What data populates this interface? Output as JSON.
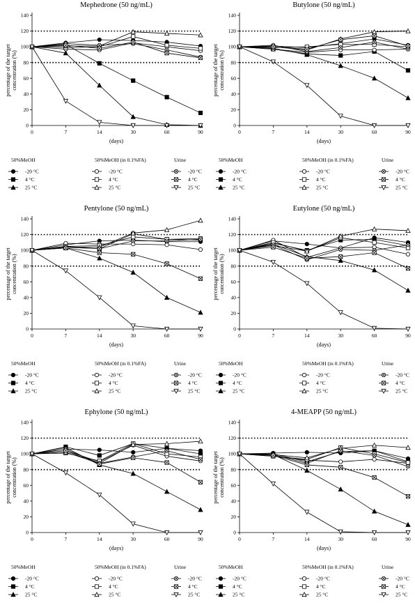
{
  "legend": {
    "groups": [
      "50%MeOH",
      "50%MeOH (in 0.1%FA)",
      "Urine"
    ],
    "temps": [
      "-20 °C",
      "4 °C",
      "25 °C"
    ]
  },
  "chart_data": [
    {
      "type": "line",
      "title": "Mephedrone (50 ng/mL)",
      "xlabel": "(days)",
      "ylabel": "percentage of the target concentration (%)",
      "x": [
        0,
        7,
        14,
        30,
        60,
        90
      ],
      "x_scale": "categorical",
      "ylim": [
        0,
        140
      ],
      "yticks": [
        0,
        20,
        40,
        60,
        80,
        100,
        120,
        140
      ],
      "reference_lines": [
        80,
        120
      ],
      "series": [
        {
          "name": "50%MeOH -20 °C",
          "marker": "circle-filled",
          "values": [
            100,
            105,
            109,
            108,
            106,
            101
          ]
        },
        {
          "name": "50%MeOH 4 °C",
          "marker": "square-filled",
          "values": [
            100,
            103,
            79,
            57,
            36,
            16
          ]
        },
        {
          "name": "50%MeOH 25 °C",
          "marker": "triangle-filled",
          "values": [
            100,
            92,
            51,
            11,
            1,
            0
          ]
        },
        {
          "name": "50%MeOH (in 0.1%FA) -20 °C",
          "marker": "circle-open",
          "values": [
            100,
            97,
            96,
            105,
            100,
            95
          ]
        },
        {
          "name": "50%MeOH (in 0.1%FA) 4 °C",
          "marker": "square-open",
          "values": [
            100,
            99,
            100,
            113,
            102,
            98
          ]
        },
        {
          "name": "50%MeOH (in 0.1%FA) 25 °C",
          "marker": "triangle-up-open",
          "values": [
            100,
            101,
            101,
            119,
            117,
            115
          ]
        },
        {
          "name": "Urine -20 °C",
          "marker": "circle-x",
          "values": [
            100,
            104,
            102,
            104,
            96,
            87
          ]
        },
        {
          "name": "Urine 4 °C",
          "marker": "square-x",
          "values": [
            100,
            102,
            98,
            106,
            92,
            86
          ]
        },
        {
          "name": "Urine 25 °C",
          "marker": "triangle-down-open",
          "values": [
            100,
            31,
            4,
            0,
            0,
            0
          ]
        }
      ]
    },
    {
      "type": "line",
      "title": "Butylone (50 ng/mL)",
      "xlabel": "(days)",
      "ylabel": "percentage of the target concentration (%)",
      "x": [
        0,
        7,
        14,
        30,
        60,
        90
      ],
      "x_scale": "categorical",
      "ylim": [
        0,
        140
      ],
      "yticks": [
        0,
        20,
        40,
        60,
        80,
        100,
        120,
        140
      ],
      "reference_lines": [
        80,
        120
      ],
      "series": [
        {
          "name": "50%MeOH -20 °C",
          "marker": "circle-filled",
          "values": [
            100,
            101,
            99,
            104,
            110,
            102
          ]
        },
        {
          "name": "50%MeOH 4 °C",
          "marker": "square-filled",
          "values": [
            100,
            97,
            91,
            89,
            94,
            70
          ]
        },
        {
          "name": "50%MeOH 25 °C",
          "marker": "triangle-filled",
          "values": [
            100,
            98,
            90,
            76,
            60,
            35
          ]
        },
        {
          "name": "50%MeOH (in 0.1%FA) -20 °C",
          "marker": "circle-open",
          "values": [
            100,
            97,
            93,
            96,
            96,
            97
          ]
        },
        {
          "name": "50%MeOH (in 0.1%FA) 4 °C",
          "marker": "square-open",
          "values": [
            100,
            99,
            100,
            103,
            103,
            100
          ]
        },
        {
          "name": "50%MeOH (in 0.1%FA) 25 °C",
          "marker": "triangle-up-open",
          "values": [
            100,
            100,
            96,
            110,
            119,
            120
          ]
        },
        {
          "name": "Urine -20 °C",
          "marker": "circle-x",
          "values": [
            100,
            102,
            94,
            99,
            106,
            97
          ]
        },
        {
          "name": "Urine 4 °C",
          "marker": "square-x",
          "values": [
            100,
            100,
            97,
            109,
            114,
            101
          ]
        },
        {
          "name": "Urine 25 °C",
          "marker": "triangle-down-open",
          "values": [
            100,
            81,
            51,
            12,
            0,
            0
          ]
        }
      ]
    },
    {
      "type": "line",
      "title": "Pentylone (50 ng/mL)",
      "xlabel": "(days)",
      "ylabel": "percentage of the target concentration (%)",
      "x": [
        0,
        7,
        14,
        30,
        60,
        90
      ],
      "x_scale": "categorical",
      "ylim": [
        0,
        140
      ],
      "yticks": [
        0,
        20,
        40,
        60,
        80,
        100,
        120,
        140
      ],
      "reference_lines": [
        80,
        120
      ],
      "series": [
        {
          "name": "50%MeOH -20 °C",
          "marker": "circle-filled",
          "values": [
            100,
            107,
            112,
            113,
            111,
            111
          ]
        },
        {
          "name": "50%MeOH 4 °C",
          "marker": "square-filled",
          "values": [
            100,
            105,
            102,
            121,
            114,
            113
          ]
        },
        {
          "name": "50%MeOH 25 °C",
          "marker": "triangle-filled",
          "values": [
            100,
            103,
            90,
            72,
            40,
            21
          ]
        },
        {
          "name": "50%MeOH (in 0.1%FA) -20 °C",
          "marker": "circle-open",
          "values": [
            100,
            109,
            108,
            108,
            107,
            101
          ]
        },
        {
          "name": "50%MeOH (in 0.1%FA) 4 °C",
          "marker": "square-open",
          "values": [
            100,
            105,
            106,
            117,
            114,
            115
          ]
        },
        {
          "name": "50%MeOH (in 0.1%FA) 25 °C",
          "marker": "triangle-up-open",
          "values": [
            100,
            104,
            104,
            122,
            126,
            138
          ]
        },
        {
          "name": "Urine -20 °C",
          "marker": "circle-x",
          "values": [
            100,
            104,
            102,
            112,
            112,
            114
          ]
        },
        {
          "name": "Urine 4 °C",
          "marker": "square-x",
          "values": [
            100,
            103,
            97,
            95,
            83,
            64
          ]
        },
        {
          "name": "Urine 25 °C",
          "marker": "triangle-down-open",
          "values": [
            100,
            74,
            40,
            4,
            0,
            0
          ]
        }
      ]
    },
    {
      "type": "line",
      "title": "Eutylone (50 ng/mL)",
      "xlabel": "(days)",
      "ylabel": "percentage of the target concentration (%)",
      "x": [
        0,
        7,
        14,
        30,
        60,
        90
      ],
      "x_scale": "categorical",
      "ylim": [
        0,
        140
      ],
      "yticks": [
        0,
        20,
        40,
        60,
        80,
        100,
        120,
        140
      ],
      "reference_lines": [
        80,
        120
      ],
      "series": [
        {
          "name": "50%MeOH -20 °C",
          "marker": "circle-filled",
          "values": [
            100,
            112,
            108,
            103,
            116,
            110
          ]
        },
        {
          "name": "50%MeOH 4 °C",
          "marker": "square-filled",
          "values": [
            100,
            109,
            100,
            113,
            114,
            106
          ]
        },
        {
          "name": "50%MeOH 25 °C",
          "marker": "triangle-filled",
          "values": [
            100,
            108,
            92,
            87,
            75,
            49
          ]
        },
        {
          "name": "50%MeOH (in 0.1%FA) -20 °C",
          "marker": "circle-open",
          "values": [
            100,
            113,
            91,
            103,
            104,
            95
          ]
        },
        {
          "name": "50%MeOH (in 0.1%FA) 4 °C",
          "marker": "square-open",
          "values": [
            100,
            110,
            99,
            116,
            110,
            103
          ]
        },
        {
          "name": "50%MeOH (in 0.1%FA) 25 °C",
          "marker": "triangle-up-open",
          "values": [
            100,
            106,
            99,
            118,
            127,
            125
          ]
        },
        {
          "name": "Urine -20 °C",
          "marker": "circle-x",
          "values": [
            100,
            107,
            88,
            101,
            100,
            107
          ]
        },
        {
          "name": "Urine 4 °C",
          "marker": "square-x",
          "values": [
            100,
            104,
            90,
            92,
            97,
            77
          ]
        },
        {
          "name": "Urine 25 °C",
          "marker": "triangle-down-open",
          "values": [
            100,
            85,
            58,
            21,
            1,
            0
          ]
        }
      ]
    },
    {
      "type": "line",
      "title": "Ephylone (50 ng/mL)",
      "xlabel": "(days)",
      "ylabel": "percentage of the target concentration (%)",
      "x": [
        0,
        7,
        14,
        30,
        60,
        90
      ],
      "x_scale": "categorical",
      "ylim": [
        0,
        140
      ],
      "yticks": [
        0,
        20,
        40,
        60,
        80,
        100,
        120,
        140
      ],
      "reference_lines": [
        80,
        120
      ],
      "series": [
        {
          "name": "50%MeOH -20 °C",
          "marker": "circle-filled",
          "values": [
            100,
            106,
            105,
            102,
            107,
            104
          ]
        },
        {
          "name": "50%MeOH 4 °C",
          "marker": "square-filled",
          "values": [
            100,
            109,
            98,
            113,
            107,
            100
          ]
        },
        {
          "name": "50%MeOH 25 °C",
          "marker": "triangle-filled",
          "values": [
            100,
            108,
            86,
            75,
            52,
            29
          ]
        },
        {
          "name": "50%MeOH (in 0.1%FA) -20 °C",
          "marker": "circle-open",
          "values": [
            100,
            104,
            90,
            111,
            97,
            91
          ]
        },
        {
          "name": "50%MeOH (in 0.1%FA) 4 °C",
          "marker": "square-open",
          "values": [
            100,
            101,
            91,
            113,
            100,
            96
          ]
        },
        {
          "name": "50%MeOH (in 0.1%FA) 25 °C",
          "marker": "triangle-up-open",
          "values": [
            100,
            102,
            88,
            112,
            113,
            116
          ]
        },
        {
          "name": "Urine -20 °C",
          "marker": "circle-x",
          "values": [
            100,
            106,
            88,
            96,
            104,
            93
          ]
        },
        {
          "name": "Urine 4 °C",
          "marker": "square-x",
          "values": [
            100,
            104,
            87,
            95,
            89,
            64
          ]
        },
        {
          "name": "Urine 25 °C",
          "marker": "triangle-down-open",
          "values": [
            100,
            76,
            48,
            11,
            0,
            0
          ]
        }
      ]
    },
    {
      "type": "line",
      "title": "4-MEAPP (50 ng/mL)",
      "xlabel": "(days)",
      "ylabel": "percentage of the target concentration (%)",
      "x": [
        0,
        7,
        14,
        30,
        60,
        90
      ],
      "x_scale": "categorical",
      "ylim": [
        0,
        140
      ],
      "yticks": [
        0,
        20,
        40,
        60,
        80,
        100,
        120,
        140
      ],
      "reference_lines": [
        80,
        120
      ],
      "series": [
        {
          "name": "50%MeOH -20 °C",
          "marker": "circle-filled",
          "values": [
            100,
            101,
            102,
            101,
            104,
            94
          ]
        },
        {
          "name": "50%MeOH 4 °C",
          "marker": "square-filled",
          "values": [
            100,
            100,
            90,
            103,
            104,
            90
          ]
        },
        {
          "name": "50%MeOH 25 °C",
          "marker": "triangle-filled",
          "values": [
            100,
            99,
            79,
            55,
            27,
            10
          ]
        },
        {
          "name": "50%MeOH (in 0.1%FA) -20 °C",
          "marker": "circle-open",
          "values": [
            100,
            97,
            92,
            90,
            93,
            88
          ]
        },
        {
          "name": "50%MeOH (in 0.1%FA) 4 °C",
          "marker": "square-open",
          "values": [
            100,
            97,
            93,
            108,
            100,
            89
          ]
        },
        {
          "name": "50%MeOH (in 0.1%FA) 25 °C",
          "marker": "triangle-up-open",
          "values": [
            100,
            99,
            95,
            107,
            111,
            108
          ]
        },
        {
          "name": "Urine -20 °C",
          "marker": "circle-x",
          "values": [
            100,
            99,
            88,
            104,
            98,
            84
          ]
        },
        {
          "name": "Urine 4 °C",
          "marker": "square-x",
          "values": [
            100,
            98,
            86,
            83,
            70,
            46
          ]
        },
        {
          "name": "Urine 25 °C",
          "marker": "triangle-down-open",
          "values": [
            100,
            62,
            26,
            1,
            0,
            0
          ]
        }
      ]
    }
  ]
}
